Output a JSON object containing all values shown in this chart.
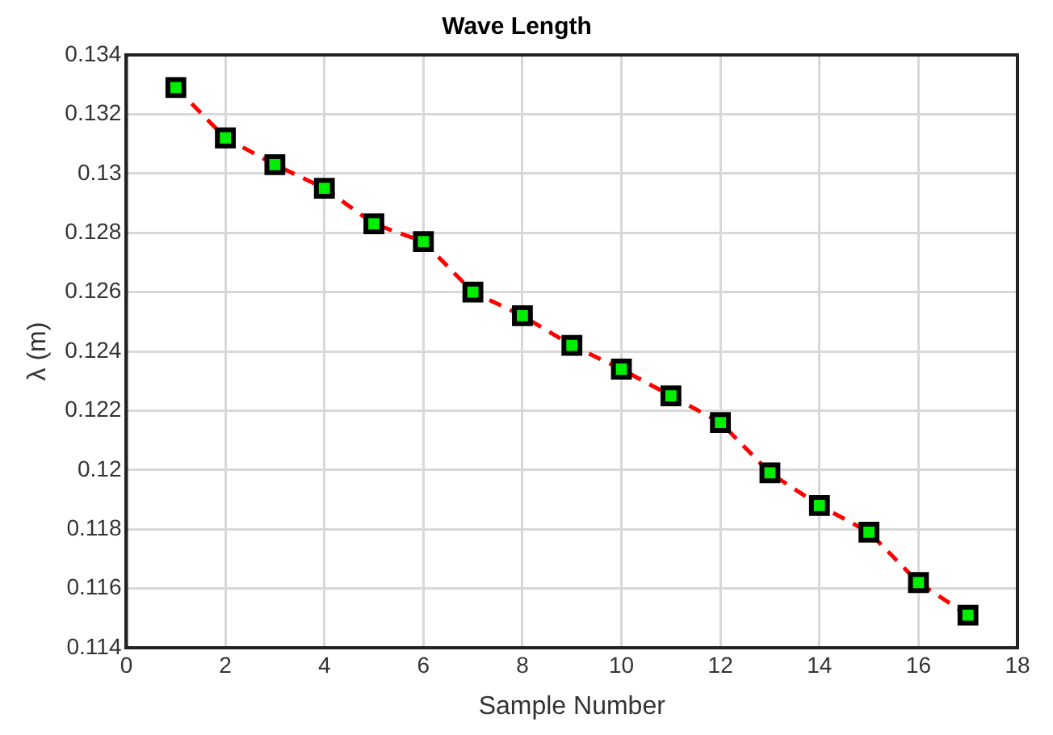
{
  "chart_data": {
    "type": "line",
    "title": "Wave Length",
    "xlabel": "Sample Number",
    "ylabel": "λ (m)",
    "x": [
      1,
      2,
      3,
      4,
      5,
      6,
      7,
      8,
      9,
      10,
      11,
      12,
      13,
      14,
      15,
      16,
      17
    ],
    "series": [
      {
        "color": "#ff0000",
        "values": [
          0.1329,
          0.1312,
          0.1303,
          0.1295,
          0.1283,
          0.1277,
          0.126,
          0.1252,
          0.1242,
          0.1234,
          0.1225,
          0.1216,
          0.1199,
          0.1188,
          0.1179,
          0.1162,
          0.1151
        ]
      }
    ],
    "xlim": [
      0,
      18
    ],
    "xticks": [
      0,
      2,
      4,
      6,
      8,
      10,
      12,
      14,
      16,
      18
    ],
    "ylim": [
      0.114,
      0.134
    ],
    "yticks": [
      0.114,
      0.116,
      0.118,
      {
        "value": 0.12,
        "label": "0.12"
      },
      0.122,
      0.124,
      0.126,
      0.128,
      {
        "value": 0.13,
        "label": "0.13"
      },
      0.132,
      0.134
    ],
    "grid": true,
    "legend": false,
    "marker": "square",
    "line_style": "dashed"
  }
}
